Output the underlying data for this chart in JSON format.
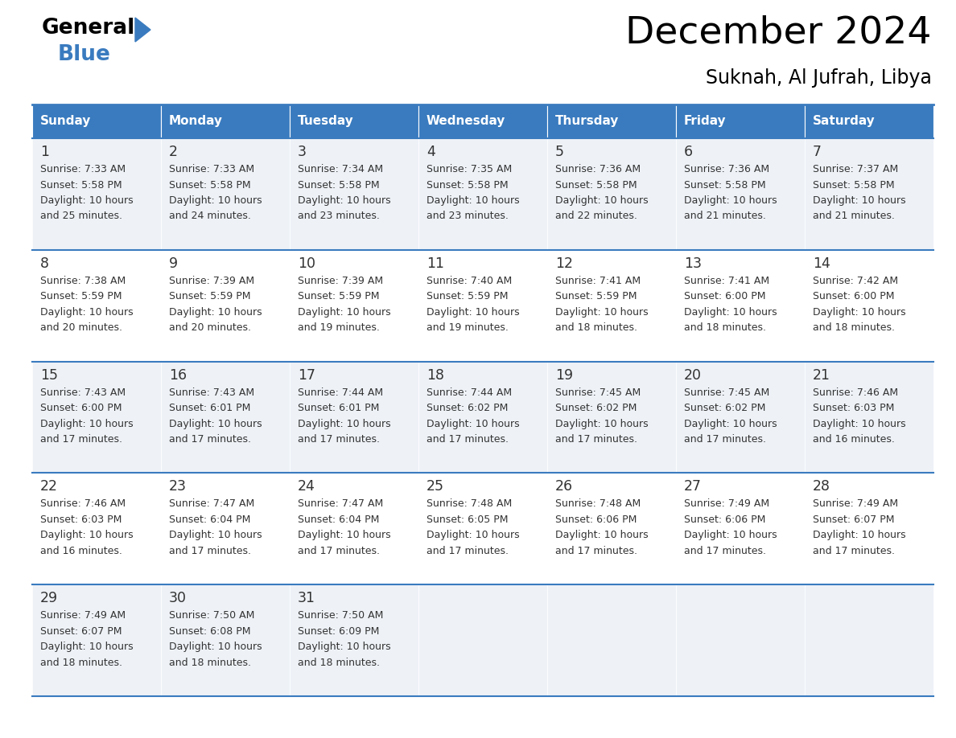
{
  "title": "December 2024",
  "subtitle": "Suknah, Al Jufrah, Libya",
  "days_of_week": [
    "Sunday",
    "Monday",
    "Tuesday",
    "Wednesday",
    "Thursday",
    "Friday",
    "Saturday"
  ],
  "header_bg": "#3a7bbf",
  "header_text": "#ffffff",
  "row_bg_odd": "#eef2f7",
  "row_bg_even": "#ffffff",
  "border_color": "#3a7bbf",
  "text_color": "#333333",
  "calendar_data": [
    [
      {
        "day": "1",
        "sunrise": "7:33 AM",
        "sunset": "5:58 PM",
        "dl1": "Daylight: 10 hours",
        "dl2": "and 25 minutes."
      },
      {
        "day": "2",
        "sunrise": "7:33 AM",
        "sunset": "5:58 PM",
        "dl1": "Daylight: 10 hours",
        "dl2": "and 24 minutes."
      },
      {
        "day": "3",
        "sunrise": "7:34 AM",
        "sunset": "5:58 PM",
        "dl1": "Daylight: 10 hours",
        "dl2": "and 23 minutes."
      },
      {
        "day": "4",
        "sunrise": "7:35 AM",
        "sunset": "5:58 PM",
        "dl1": "Daylight: 10 hours",
        "dl2": "and 23 minutes."
      },
      {
        "day": "5",
        "sunrise": "7:36 AM",
        "sunset": "5:58 PM",
        "dl1": "Daylight: 10 hours",
        "dl2": "and 22 minutes."
      },
      {
        "day": "6",
        "sunrise": "7:36 AM",
        "sunset": "5:58 PM",
        "dl1": "Daylight: 10 hours",
        "dl2": "and 21 minutes."
      },
      {
        "day": "7",
        "sunrise": "7:37 AM",
        "sunset": "5:58 PM",
        "dl1": "Daylight: 10 hours",
        "dl2": "and 21 minutes."
      }
    ],
    [
      {
        "day": "8",
        "sunrise": "7:38 AM",
        "sunset": "5:59 PM",
        "dl1": "Daylight: 10 hours",
        "dl2": "and 20 minutes."
      },
      {
        "day": "9",
        "sunrise": "7:39 AM",
        "sunset": "5:59 PM",
        "dl1": "Daylight: 10 hours",
        "dl2": "and 20 minutes."
      },
      {
        "day": "10",
        "sunrise": "7:39 AM",
        "sunset": "5:59 PM",
        "dl1": "Daylight: 10 hours",
        "dl2": "and 19 minutes."
      },
      {
        "day": "11",
        "sunrise": "7:40 AM",
        "sunset": "5:59 PM",
        "dl1": "Daylight: 10 hours",
        "dl2": "and 19 minutes."
      },
      {
        "day": "12",
        "sunrise": "7:41 AM",
        "sunset": "5:59 PM",
        "dl1": "Daylight: 10 hours",
        "dl2": "and 18 minutes."
      },
      {
        "day": "13",
        "sunrise": "7:41 AM",
        "sunset": "6:00 PM",
        "dl1": "Daylight: 10 hours",
        "dl2": "and 18 minutes."
      },
      {
        "day": "14",
        "sunrise": "7:42 AM",
        "sunset": "6:00 PM",
        "dl1": "Daylight: 10 hours",
        "dl2": "and 18 minutes."
      }
    ],
    [
      {
        "day": "15",
        "sunrise": "7:43 AM",
        "sunset": "6:00 PM",
        "dl1": "Daylight: 10 hours",
        "dl2": "and 17 minutes."
      },
      {
        "day": "16",
        "sunrise": "7:43 AM",
        "sunset": "6:01 PM",
        "dl1": "Daylight: 10 hours",
        "dl2": "and 17 minutes."
      },
      {
        "day": "17",
        "sunrise": "7:44 AM",
        "sunset": "6:01 PM",
        "dl1": "Daylight: 10 hours",
        "dl2": "and 17 minutes."
      },
      {
        "day": "18",
        "sunrise": "7:44 AM",
        "sunset": "6:02 PM",
        "dl1": "Daylight: 10 hours",
        "dl2": "and 17 minutes."
      },
      {
        "day": "19",
        "sunrise": "7:45 AM",
        "sunset": "6:02 PM",
        "dl1": "Daylight: 10 hours",
        "dl2": "and 17 minutes."
      },
      {
        "day": "20",
        "sunrise": "7:45 AM",
        "sunset": "6:02 PM",
        "dl1": "Daylight: 10 hours",
        "dl2": "and 17 minutes."
      },
      {
        "day": "21",
        "sunrise": "7:46 AM",
        "sunset": "6:03 PM",
        "dl1": "Daylight: 10 hours",
        "dl2": "and 16 minutes."
      }
    ],
    [
      {
        "day": "22",
        "sunrise": "7:46 AM",
        "sunset": "6:03 PM",
        "dl1": "Daylight: 10 hours",
        "dl2": "and 16 minutes."
      },
      {
        "day": "23",
        "sunrise": "7:47 AM",
        "sunset": "6:04 PM",
        "dl1": "Daylight: 10 hours",
        "dl2": "and 17 minutes."
      },
      {
        "day": "24",
        "sunrise": "7:47 AM",
        "sunset": "6:04 PM",
        "dl1": "Daylight: 10 hours",
        "dl2": "and 17 minutes."
      },
      {
        "day": "25",
        "sunrise": "7:48 AM",
        "sunset": "6:05 PM",
        "dl1": "Daylight: 10 hours",
        "dl2": "and 17 minutes."
      },
      {
        "day": "26",
        "sunrise": "7:48 AM",
        "sunset": "6:06 PM",
        "dl1": "Daylight: 10 hours",
        "dl2": "and 17 minutes."
      },
      {
        "day": "27",
        "sunrise": "7:49 AM",
        "sunset": "6:06 PM",
        "dl1": "Daylight: 10 hours",
        "dl2": "and 17 minutes."
      },
      {
        "day": "28",
        "sunrise": "7:49 AM",
        "sunset": "6:07 PM",
        "dl1": "Daylight: 10 hours",
        "dl2": "and 17 minutes."
      }
    ],
    [
      {
        "day": "29",
        "sunrise": "7:49 AM",
        "sunset": "6:07 PM",
        "dl1": "Daylight: 10 hours",
        "dl2": "and 18 minutes."
      },
      {
        "day": "30",
        "sunrise": "7:50 AM",
        "sunset": "6:08 PM",
        "dl1": "Daylight: 10 hours",
        "dl2": "and 18 minutes."
      },
      {
        "day": "31",
        "sunrise": "7:50 AM",
        "sunset": "6:09 PM",
        "dl1": "Daylight: 10 hours",
        "dl2": "and 18 minutes."
      },
      null,
      null,
      null,
      null
    ]
  ]
}
